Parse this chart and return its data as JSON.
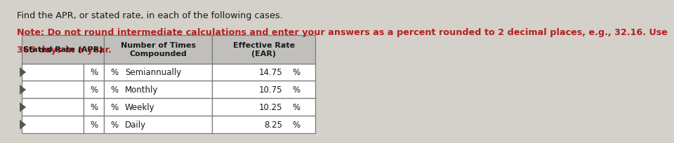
{
  "title_line1": "Find the APR, or stated rate, in each of the following cases.",
  "title_line2": "Note: Do not round intermediate calculations and enter your answers as a percent rounded to 2 decimal places, e.g., 32.16. Use",
  "title_line3": "365 days in a year.",
  "bg_color": "#d4d0ca",
  "table_bg": "#ffffff",
  "header_bg": "#c0bfbc",
  "border_color": "#7a7a7a",
  "title_color_normal": "#1a1a1a",
  "title_color_bold_red": "#b22020",
  "text_color": "#1a1a1a",
  "row_labels": [
    "Semiannually",
    "Monthly",
    "Weekly",
    "Daily"
  ],
  "ear_values": [
    "14.75",
    "10.75",
    "10.25",
    "8.25"
  ]
}
